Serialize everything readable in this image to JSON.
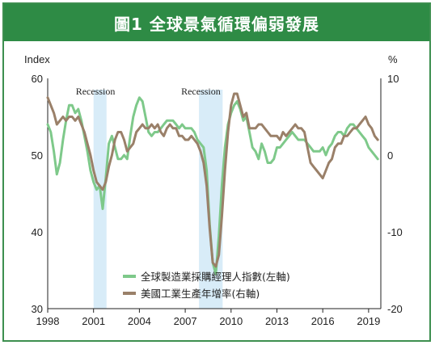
{
  "title": "圖1  全球景氣循環偏弱發展",
  "colors": {
    "header": "#2e8b45",
    "pmi": "#7ec98a",
    "ip": "#9a8069",
    "recession": "#d8ecf8"
  },
  "chart_data": {
    "type": "line",
    "left_axis_label": "Index",
    "right_axis_label": "%",
    "left_ylim": [
      30,
      60
    ],
    "right_ylim": [
      -20,
      10
    ],
    "left_ticks": [
      "60",
      "50",
      "40",
      "30"
    ],
    "right_ticks": [
      "10",
      "0",
      "-10",
      "-20"
    ],
    "x_ticks": [
      "1998",
      "2001",
      "2004",
      "2007",
      "2010",
      "2013",
      "2016",
      "2019"
    ],
    "xlim": [
      1998.0,
      2019.8
    ],
    "recessions": [
      {
        "label": "Recession",
        "start": 2001.0,
        "end": 2001.85
      },
      {
        "label": "Recession",
        "start": 2007.9,
        "end": 2009.45
      }
    ],
    "series": [
      {
        "name": "全球製造業採購經理人指數(左軸)",
        "axis": "left",
        "x": [
          1998.0,
          1998.2,
          1998.4,
          1998.6,
          1998.8,
          1999.0,
          1999.2,
          1999.4,
          1999.6,
          1999.8,
          2000.0,
          2000.2,
          2000.4,
          2000.6,
          2000.8,
          2001.0,
          2001.2,
          2001.4,
          2001.6,
          2001.8,
          2002.0,
          2002.2,
          2002.4,
          2002.6,
          2002.8,
          2003.0,
          2003.2,
          2003.4,
          2003.6,
          2003.8,
          2004.0,
          2004.2,
          2004.4,
          2004.6,
          2004.8,
          2005.0,
          2005.2,
          2005.4,
          2005.6,
          2005.8,
          2006.0,
          2006.2,
          2006.4,
          2006.6,
          2006.8,
          2007.0,
          2007.2,
          2007.4,
          2007.6,
          2007.8,
          2008.0,
          2008.2,
          2008.4,
          2008.6,
          2008.8,
          2009.0,
          2009.2,
          2009.4,
          2009.6,
          2009.8,
          2010.0,
          2010.2,
          2010.4,
          2010.6,
          2010.8,
          2011.0,
          2011.2,
          2011.4,
          2011.6,
          2011.8,
          2012.0,
          2012.2,
          2012.4,
          2012.6,
          2012.8,
          2013.0,
          2013.2,
          2013.4,
          2013.6,
          2013.8,
          2014.0,
          2014.2,
          2014.4,
          2014.6,
          2014.8,
          2015.0,
          2015.2,
          2015.4,
          2015.6,
          2015.8,
          2016.0,
          2016.2,
          2016.4,
          2016.6,
          2016.8,
          2017.0,
          2017.2,
          2017.4,
          2017.6,
          2017.8,
          2018.0,
          2018.2,
          2018.4,
          2018.6,
          2018.8,
          2019.0,
          2019.2,
          2019.4,
          2019.6
        ],
        "values": [
          54.0,
          53.0,
          50.5,
          47.5,
          49.0,
          52.0,
          54.5,
          56.5,
          56.5,
          55.5,
          56.0,
          54.5,
          52.5,
          50.5,
          48.0,
          46.5,
          45.5,
          46.0,
          43.0,
          47.0,
          51.5,
          52.5,
          51.0,
          49.5,
          49.5,
          50.0,
          49.5,
          52.5,
          55.0,
          56.5,
          57.5,
          57.0,
          55.0,
          53.0,
          52.5,
          53.0,
          53.0,
          53.5,
          54.0,
          54.5,
          54.5,
          54.5,
          54.0,
          53.5,
          54.0,
          53.5,
          53.5,
          53.5,
          53.0,
          52.0,
          51.5,
          51.0,
          48.0,
          41.0,
          36.0,
          34.5,
          39.5,
          46.0,
          51.0,
          54.0,
          55.5,
          56.5,
          57.0,
          56.0,
          54.5,
          55.0,
          53.0,
          51.0,
          50.5,
          49.5,
          51.5,
          50.5,
          49.0,
          49.0,
          49.5,
          51.0,
          51.0,
          51.5,
          52.0,
          52.5,
          53.0,
          52.5,
          52.0,
          52.0,
          52.0,
          51.5,
          51.0,
          50.5,
          50.5,
          50.5,
          51.0,
          50.0,
          51.0,
          51.5,
          52.5,
          53.0,
          53.0,
          52.5,
          53.5,
          54.0,
          54.0,
          53.5,
          53.0,
          52.5,
          52.0,
          51.0,
          50.5,
          50.0,
          49.5
        ]
      },
      {
        "name": "美國工業生產年增率(右軸)",
        "axis": "right",
        "x": [
          1998.0,
          1998.2,
          1998.4,
          1998.6,
          1998.8,
          1999.0,
          1999.2,
          1999.4,
          1999.6,
          1999.8,
          2000.0,
          2000.2,
          2000.4,
          2000.6,
          2000.8,
          2001.0,
          2001.2,
          2001.4,
          2001.6,
          2001.8,
          2002.0,
          2002.2,
          2002.4,
          2002.6,
          2002.8,
          2003.0,
          2003.2,
          2003.4,
          2003.6,
          2003.8,
          2004.0,
          2004.2,
          2004.4,
          2004.6,
          2004.8,
          2005.0,
          2005.2,
          2005.4,
          2005.6,
          2005.8,
          2006.0,
          2006.2,
          2006.4,
          2006.6,
          2006.8,
          2007.0,
          2007.2,
          2007.4,
          2007.6,
          2007.8,
          2008.0,
          2008.2,
          2008.4,
          2008.6,
          2008.8,
          2009.0,
          2009.2,
          2009.4,
          2009.6,
          2009.8,
          2010.0,
          2010.2,
          2010.4,
          2010.6,
          2010.8,
          2011.0,
          2011.2,
          2011.4,
          2011.6,
          2011.8,
          2012.0,
          2012.2,
          2012.4,
          2012.6,
          2012.8,
          2013.0,
          2013.2,
          2013.4,
          2013.6,
          2013.8,
          2014.0,
          2014.2,
          2014.4,
          2014.6,
          2014.8,
          2015.0,
          2015.2,
          2015.4,
          2015.6,
          2015.8,
          2016.0,
          2016.2,
          2016.4,
          2016.6,
          2016.8,
          2017.0,
          2017.2,
          2017.4,
          2017.6,
          2017.8,
          2018.0,
          2018.2,
          2018.4,
          2018.6,
          2018.8,
          2019.0,
          2019.2,
          2019.4,
          2019.6
        ],
        "values": [
          7.5,
          6.5,
          5.5,
          4.0,
          4.5,
          5.0,
          4.5,
          5.0,
          5.0,
          4.5,
          5.0,
          4.0,
          3.0,
          1.5,
          0.0,
          -2.0,
          -3.5,
          -4.0,
          -4.5,
          -3.5,
          -1.5,
          0.0,
          2.0,
          3.0,
          3.0,
          2.0,
          0.5,
          1.0,
          1.5,
          3.0,
          3.5,
          4.0,
          3.5,
          3.5,
          4.0,
          3.5,
          4.0,
          3.0,
          2.5,
          3.5,
          4.0,
          3.5,
          3.5,
          2.5,
          2.5,
          2.0,
          2.0,
          2.5,
          2.0,
          1.5,
          0.5,
          -1.0,
          -4.0,
          -9.5,
          -14.0,
          -14.5,
          -13.0,
          -8.0,
          -2.0,
          3.0,
          6.5,
          8.0,
          8.0,
          6.5,
          5.0,
          5.5,
          3.5,
          3.5,
          3.5,
          4.0,
          4.0,
          3.5,
          3.0,
          2.5,
          2.5,
          2.5,
          2.0,
          3.0,
          2.5,
          3.0,
          3.5,
          4.0,
          3.5,
          3.5,
          3.0,
          1.0,
          -1.0,
          -1.5,
          -2.0,
          -2.5,
          -3.0,
          -2.0,
          -1.0,
          -0.5,
          1.0,
          1.5,
          1.5,
          2.5,
          2.5,
          3.0,
          3.5,
          3.5,
          4.0,
          4.5,
          5.0,
          4.0,
          3.5,
          2.5,
          2.0
        ]
      }
    ]
  }
}
